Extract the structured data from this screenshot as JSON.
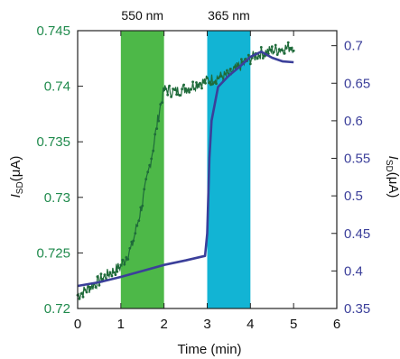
{
  "chart_data": {
    "type": "line",
    "xlabel": "Time (min)",
    "xlim": [
      0,
      6
    ],
    "xticks": [
      0,
      1,
      2,
      3,
      4,
      5,
      6
    ],
    "ylabel_left": "ISD(μA)",
    "ylabel_left_main": "I",
    "ylabel_left_sub": "SD",
    "ylabel_left_unit": "(μA)",
    "ylim_left": [
      0.72,
      0.745
    ],
    "yticks_left": [
      "0.72",
      "0.725",
      "0.73",
      "0.735",
      "0.74",
      "0.745"
    ],
    "ylabel_right": "ISD(μA)",
    "ylabel_right_main": "I",
    "ylabel_right_sub": "SD",
    "ylabel_right_unit": "(μA)",
    "ylim_right": [
      0.35,
      0.72
    ],
    "yticks_right": [
      "0.35",
      "0.4",
      "0.45",
      "0.5",
      "0.55",
      "0.6",
      "0.65",
      "0.7"
    ],
    "bands": [
      {
        "label": "550 nm",
        "x": [
          1,
          2
        ],
        "color": "#4db848"
      },
      {
        "label": "365 nm",
        "x": [
          3,
          4
        ],
        "color": "#12b4d4"
      }
    ],
    "series": [
      {
        "axis": "left",
        "color": "#1f6b3a",
        "x": [
          0,
          0.25,
          0.5,
          0.75,
          1.0,
          1.25,
          1.5,
          1.75,
          1.9,
          2.0,
          2.25,
          2.5,
          2.75,
          3.0,
          3.25,
          3.5,
          3.75,
          4.0,
          4.25,
          4.5,
          4.75,
          5.0
        ],
        "y": [
          0.7212,
          0.7218,
          0.7225,
          0.7232,
          0.7238,
          0.7255,
          0.7295,
          0.7345,
          0.738,
          0.7397,
          0.7395,
          0.7398,
          0.7402,
          0.7405,
          0.7408,
          0.741,
          0.7418,
          0.7425,
          0.743,
          0.7432,
          0.7434,
          0.7436
        ]
      },
      {
        "axis": "right",
        "color": "#3b3f9a",
        "x": [
          0,
          0.5,
          1.0,
          1.5,
          2.0,
          2.5,
          2.95,
          3.0,
          3.05,
          3.1,
          3.25,
          3.5,
          3.75,
          4.0,
          4.25,
          4.5,
          4.75,
          5.0
        ],
        "y": [
          0.38,
          0.385,
          0.392,
          0.4,
          0.408,
          0.414,
          0.42,
          0.45,
          0.55,
          0.6,
          0.645,
          0.66,
          0.672,
          0.685,
          0.692,
          0.684,
          0.679,
          0.678
        ]
      }
    ]
  }
}
